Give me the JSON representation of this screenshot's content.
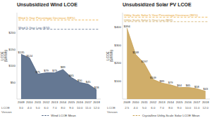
{
  "chart_data": [
    {
      "type": "area",
      "title": "Unsubsidized Wind LCOE",
      "y_label": "LCOE\n($/MWh)",
      "x": [
        2009,
        2010,
        2011,
        2012,
        2013,
        2014,
        2015,
        2016,
        2017,
        2018
      ],
      "xlim": [
        2008.5,
        2018.5
      ],
      "xticks": [
        2009,
        2010,
        2011,
        2012,
        2013,
        2014,
        2015,
        2016,
        2017,
        2018
      ],
      "series": [
        {
          "name": "Wind LCOE Mean",
          "color": "#4a6080",
          "values": [
            135,
            124,
            75,
            79,
            79,
            89,
            65,
            50,
            45,
            28
          ],
          "value_labels": [
            "$135",
            "$124",
            "$75",
            "$79",
            "$79",
            "$89",
            "$65",
            "$50",
            "$45",
            "$28"
          ]
        }
      ],
      "ylim": [
        0,
        260
      ],
      "yticks": [
        {
          "value": 50,
          "label": "$50"
        },
        {
          "value": 100,
          "label": "$100"
        },
        {
          "value": 150,
          "label": "$150"
        },
        {
          "value": 200,
          "label": "$200"
        }
      ],
      "reference_lines": [
        {
          "y": 238,
          "label": "Wind 5-Year Percentage Decrease (58%)",
          "color": "#e8a020"
        },
        {
          "y": 210,
          "label": "Wind 5-Year Low ($74)",
          "color": "#4a6080"
        }
      ],
      "version_labels": {
        "title": "LCOE\nVersion",
        "labels": [
          "3.0",
          "4.0",
          "5.0",
          "6.0",
          "7.0",
          "8.0",
          "9.0",
          "10.0",
          "11.0",
          "12.0"
        ]
      },
      "data_labels": true,
      "grid": false,
      "legend": "bottom"
    },
    {
      "type": "area",
      "title": "Unsubsidized Solar PV LCOE",
      "y_label": "LCOE\n($/MWh)",
      "x": [
        2009,
        2010,
        2011,
        2012,
        2013,
        2014,
        2015,
        2016,
        2017,
        2018
      ],
      "xlim": [
        2008.5,
        2018.5
      ],
      "xticks": [
        2009,
        2010,
        2011,
        2012,
        2013,
        2014,
        2015,
        2016,
        2017,
        2018
      ],
      "series": [
        {
          "name": "Crystalline Utility-Scale Solar LCOE Mean",
          "color": "#c8a050",
          "values": [
            394,
            248,
            197,
            109,
            89,
            79,
            64,
            65,
            58,
            43
          ],
          "value_labels": [
            "$394",
            "$248",
            "$197",
            "$109",
            "$89",
            "$79",
            "$64",
            "$65",
            "$58",
            "$43"
          ]
        }
      ],
      "ylim": [
        0,
        480
      ],
      "yticks": [
        {
          "value": 100,
          "label": "$100"
        },
        {
          "value": 200,
          "label": "$200"
        },
        {
          "value": 300,
          "label": "$300"
        },
        {
          "value": 400,
          "label": "$400"
        }
      ],
      "reference_lines": [
        {
          "y": 455,
          "label": "Utility Scale Solar 5-Year Percentage Decrease (86%)",
          "color": "#e8a020"
        },
        {
          "y": 430,
          "label": "Utility Scale Solar 5-Year Low ($63)",
          "color": "#c8a050"
        }
      ],
      "version_labels": {
        "title": "LCOE\nVersion",
        "labels": [
          "2.5",
          "4.0",
          "5.0",
          "6.0",
          "7.0",
          "8.0",
          "9.0",
          "10.0",
          "11.0",
          "12.0"
        ]
      },
      "data_labels": true,
      "grid": false,
      "legend": "bottom"
    }
  ]
}
